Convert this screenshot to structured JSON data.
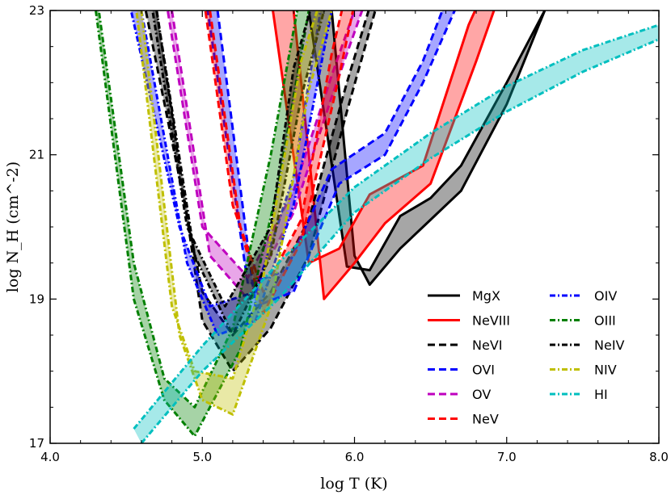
{
  "chart_data": {
    "type": "line",
    "title": "",
    "xlabel": "log T (K)",
    "ylabel": "log N_H (cm^-2)",
    "xlim": [
      4.0,
      8.0
    ],
    "ylim": [
      17,
      23
    ],
    "xticks": [
      4.0,
      5.0,
      6.0,
      7.0,
      8.0
    ],
    "xtick_labels": [
      "4.0",
      "5.0",
      "6.0",
      "7.0",
      "8.0"
    ],
    "yticks": [
      17,
      19,
      21,
      23
    ],
    "ytick_labels": [
      "17",
      "19",
      "21",
      "23"
    ],
    "legend_position": "lower-right",
    "series": [
      {
        "name": "MgX",
        "color": "#000000",
        "style": "solid",
        "lower": [
          [
            5.85,
            23.0
          ],
          [
            6.0,
            19.6
          ],
          [
            6.1,
            19.2
          ],
          [
            6.3,
            19.7
          ],
          [
            6.5,
            20.1
          ],
          [
            6.7,
            20.5
          ],
          [
            7.0,
            21.7
          ],
          [
            7.25,
            23.0
          ]
        ],
        "upper": [
          [
            5.7,
            23.0
          ],
          [
            5.95,
            19.45
          ],
          [
            6.1,
            19.4
          ],
          [
            6.3,
            20.15
          ],
          [
            6.5,
            20.4
          ],
          [
            6.7,
            20.85
          ],
          [
            7.0,
            22.0
          ],
          [
            7.3,
            23.2
          ]
        ]
      },
      {
        "name": "NeVIII",
        "color": "#ff0000",
        "style": "solid",
        "lower": [
          [
            5.6,
            23.0
          ],
          [
            5.8,
            19.0
          ],
          [
            6.0,
            19.5
          ],
          [
            6.2,
            20.05
          ],
          [
            6.5,
            20.6
          ],
          [
            6.8,
            22.3
          ],
          [
            6.95,
            23.2
          ]
        ],
        "upper": [
          [
            5.45,
            23.2
          ],
          [
            5.7,
            19.5
          ],
          [
            5.9,
            19.7
          ],
          [
            6.1,
            20.45
          ],
          [
            6.45,
            20.85
          ],
          [
            6.75,
            22.8
          ],
          [
            6.9,
            23.5
          ]
        ]
      },
      {
        "name": "NeVI",
        "color": "#000000",
        "style": "dashed",
        "lower": [
          [
            4.7,
            23.0
          ],
          [
            5.0,
            18.7
          ],
          [
            5.2,
            18.0
          ],
          [
            5.45,
            18.6
          ],
          [
            5.7,
            19.6
          ],
          [
            5.95,
            21.6
          ],
          [
            6.15,
            23.1
          ]
        ],
        "upper": [
          [
            4.6,
            23.3
          ],
          [
            5.0,
            19.1
          ],
          [
            5.2,
            18.5
          ],
          [
            5.45,
            19.1
          ],
          [
            5.7,
            20.1
          ],
          [
            5.95,
            22.0
          ],
          [
            6.15,
            23.4
          ]
        ]
      },
      {
        "name": "OVI",
        "color": "#0000ff",
        "style": "dashed",
        "lower": [
          [
            5.1,
            23.0
          ],
          [
            5.35,
            18.9
          ],
          [
            5.6,
            19.1
          ],
          [
            5.9,
            20.6
          ],
          [
            6.2,
            21.0
          ],
          [
            6.45,
            22.0
          ],
          [
            6.7,
            23.2
          ]
        ],
        "upper": [
          [
            5.0,
            23.5
          ],
          [
            5.3,
            19.2
          ],
          [
            5.55,
            19.4
          ],
          [
            5.85,
            20.8
          ],
          [
            6.2,
            21.3
          ],
          [
            6.45,
            22.3
          ],
          [
            6.65,
            23.4
          ]
        ]
      },
      {
        "name": "OV",
        "color": "#bf00bf",
        "style": "dashed",
        "lower": [
          [
            4.8,
            23.0
          ],
          [
            5.05,
            19.6
          ],
          [
            5.3,
            19.0
          ],
          [
            5.6,
            20.2
          ],
          [
            5.85,
            21.8
          ],
          [
            6.05,
            23.0
          ]
        ],
        "upper": [
          [
            4.75,
            23.3
          ],
          [
            5.0,
            20.0
          ],
          [
            5.3,
            19.3
          ],
          [
            5.6,
            20.5
          ],
          [
            5.85,
            22.1
          ],
          [
            6.05,
            23.3
          ]
        ]
      },
      {
        "name": "NeV",
        "color": "#ff0000",
        "style": "dashed",
        "lower": [
          [
            5.05,
            23.0
          ],
          [
            5.25,
            20.0
          ],
          [
            5.4,
            18.8
          ],
          [
            5.65,
            19.8
          ],
          [
            5.9,
            22.1
          ],
          [
            6.0,
            23.1
          ]
        ],
        "upper": [
          [
            5.0,
            23.3
          ],
          [
            5.2,
            20.3
          ],
          [
            5.4,
            19.1
          ],
          [
            5.65,
            20.1
          ],
          [
            5.85,
            22.4
          ],
          [
            5.95,
            23.3
          ]
        ]
      },
      {
        "name": "OIV",
        "color": "#0000ff",
        "style": "dashdot",
        "lower": [
          [
            4.6,
            23.0
          ],
          [
            4.9,
            19.5
          ],
          [
            5.1,
            18.5
          ],
          [
            5.35,
            18.7
          ],
          [
            5.6,
            20.3
          ],
          [
            5.85,
            23.0
          ]
        ],
        "upper": [
          [
            4.5,
            23.3
          ],
          [
            4.85,
            20.0
          ],
          [
            5.05,
            18.9
          ],
          [
            5.35,
            19.1
          ],
          [
            5.6,
            20.7
          ],
          [
            5.8,
            23.3
          ]
        ]
      },
      {
        "name": "OIII",
        "color": "#008000",
        "style": "dashdot",
        "lower": [
          [
            4.3,
            23.0
          ],
          [
            4.55,
            19.0
          ],
          [
            4.75,
            17.6
          ],
          [
            4.95,
            17.1
          ],
          [
            5.25,
            18.3
          ],
          [
            5.5,
            20.6
          ],
          [
            5.7,
            23.0
          ]
        ],
        "upper": [
          [
            4.3,
            23.3
          ],
          [
            4.55,
            19.5
          ],
          [
            4.75,
            17.9
          ],
          [
            4.95,
            17.5
          ],
          [
            5.2,
            18.6
          ],
          [
            5.45,
            21.0
          ],
          [
            5.65,
            23.3
          ]
        ]
      },
      {
        "name": "NeIV",
        "color": "#000000",
        "style": "dashdot",
        "lower": [
          [
            4.7,
            23.0
          ],
          [
            4.95,
            19.6
          ],
          [
            5.2,
            18.5
          ],
          [
            5.45,
            19.6
          ],
          [
            5.65,
            21.8
          ],
          [
            5.8,
            23.0
          ]
        ],
        "upper": [
          [
            4.65,
            23.3
          ],
          [
            4.9,
            20.0
          ],
          [
            5.15,
            18.9
          ],
          [
            5.45,
            20.0
          ],
          [
            5.6,
            22.2
          ],
          [
            5.75,
            23.3
          ]
        ]
      },
      {
        "name": "NIV",
        "color": "#bfbf00",
        "style": "dashdot",
        "lower": [
          [
            4.6,
            23.0
          ],
          [
            4.85,
            18.5
          ],
          [
            5.0,
            17.6
          ],
          [
            5.2,
            17.4
          ],
          [
            5.45,
            18.9
          ],
          [
            5.7,
            21.9
          ],
          [
            5.85,
            23.0
          ]
        ],
        "upper": [
          [
            4.55,
            23.3
          ],
          [
            4.8,
            18.9
          ],
          [
            4.95,
            18.0
          ],
          [
            5.2,
            17.9
          ],
          [
            5.4,
            19.3
          ],
          [
            5.65,
            22.3
          ],
          [
            5.8,
            23.3
          ]
        ]
      },
      {
        "name": "HI",
        "color": "#00bfbf",
        "style": "dashdot",
        "lower": [
          [
            4.6,
            17.0
          ],
          [
            5.0,
            18.0
          ],
          [
            5.5,
            19.0
          ],
          [
            6.0,
            20.2
          ],
          [
            6.5,
            20.95
          ],
          [
            7.0,
            21.6
          ],
          [
            7.5,
            22.15
          ],
          [
            8.0,
            22.6
          ]
        ],
        "upper": [
          [
            4.55,
            17.2
          ],
          [
            5.0,
            18.35
          ],
          [
            5.5,
            19.5
          ],
          [
            6.0,
            20.55
          ],
          [
            6.5,
            21.3
          ],
          [
            7.0,
            21.95
          ],
          [
            7.5,
            22.45
          ],
          [
            8.0,
            22.8
          ]
        ]
      }
    ]
  }
}
